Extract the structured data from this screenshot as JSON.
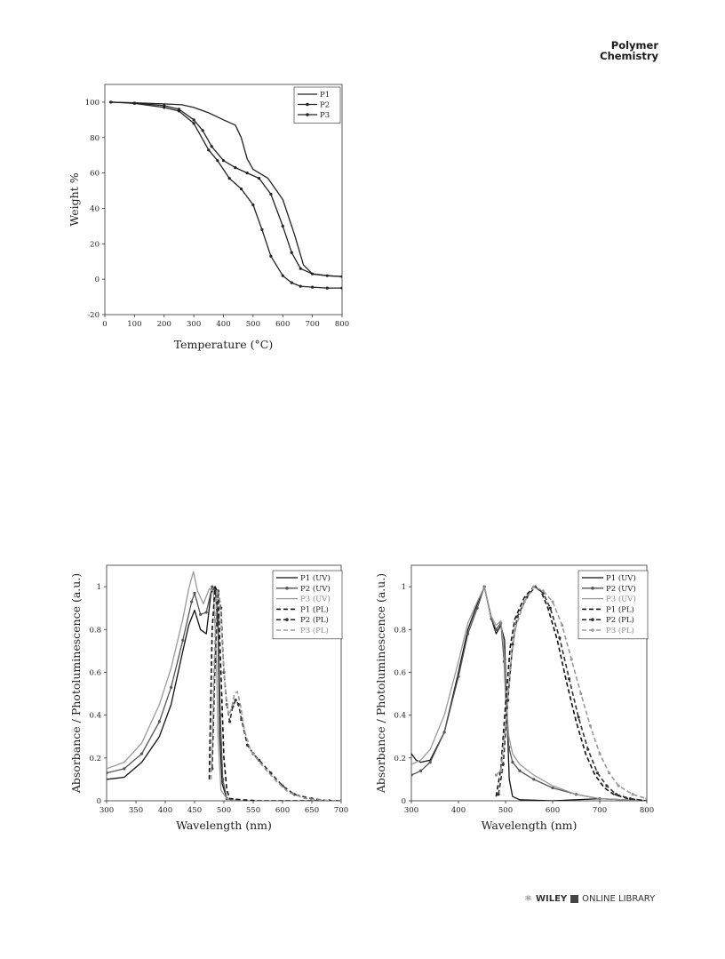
{
  "header": {
    "journal_line1": "Polymer",
    "journal_line2": "Chemistry"
  },
  "footer": {
    "publisher": "WILEY",
    "library": "ONLINE LIBRARY"
  },
  "chart_data": [
    {
      "type": "line",
      "xlabel": "Temperature (°C)",
      "ylabel": "Weight %",
      "xlim": [
        0,
        800
      ],
      "ylim": [
        -20,
        110
      ],
      "xticks": [
        0,
        100,
        200,
        300,
        400,
        500,
        600,
        700,
        800
      ],
      "yticks": [
        -20,
        0,
        20,
        40,
        60,
        80,
        100
      ],
      "legend_position": "top-right",
      "series": [
        {
          "name": "P1",
          "style": "solid",
          "marker": "none",
          "color": "#222222",
          "x": [
            20,
            100,
            200,
            260,
            300,
            350,
            400,
            440,
            460,
            480,
            500,
            550,
            600,
            640,
            670,
            700,
            750,
            800
          ],
          "y": [
            100,
            99.6,
            99,
            98.5,
            97,
            94,
            90,
            87,
            80,
            68,
            62,
            57,
            45,
            25,
            8,
            3,
            2,
            1.5
          ]
        },
        {
          "name": "P2",
          "style": "solid",
          "marker": "dot",
          "color": "#222222",
          "x": [
            20,
            100,
            200,
            250,
            300,
            330,
            360,
            400,
            440,
            480,
            520,
            560,
            600,
            630,
            660,
            700,
            750,
            800
          ],
          "y": [
            100,
            99.5,
            98,
            96,
            90,
            84,
            75,
            67,
            63,
            60,
            57,
            48,
            30,
            15,
            6,
            3,
            2,
            1.5
          ]
        },
        {
          "name": "P3",
          "style": "solid",
          "marker": "dot",
          "color": "#222222",
          "x": [
            20,
            100,
            200,
            250,
            300,
            350,
            380,
            420,
            460,
            500,
            530,
            560,
            600,
            630,
            660,
            700,
            750,
            800
          ],
          "y": [
            100,
            99.3,
            97,
            95,
            88,
            73,
            67,
            57,
            51,
            42,
            28,
            13,
            2,
            -2,
            -4,
            -4.5,
            -5,
            -5
          ]
        }
      ]
    },
    {
      "type": "line",
      "xlabel": "Wavelength (nm)",
      "ylabel": "Absorbance / Photoluminescence (a.u.)",
      "xlim": [
        300,
        700
      ],
      "ylim": [
        0,
        1.1
      ],
      "xticks": [
        300,
        350,
        400,
        450,
        500,
        550,
        600,
        650,
        700
      ],
      "yticks": [
        0,
        0.2,
        0.4,
        0.6,
        0.8,
        1
      ],
      "legend_position": "top-right",
      "series": [
        {
          "name": "P1 (UV)",
          "style": "solid",
          "marker": "none",
          "color": "#111111",
          "x": [
            300,
            330,
            360,
            390,
            410,
            430,
            440,
            450,
            460,
            470,
            478,
            485,
            490,
            493,
            497,
            505,
            520
          ],
          "y": [
            0.1,
            0.11,
            0.18,
            0.3,
            0.45,
            0.7,
            0.82,
            0.89,
            0.8,
            0.78,
            0.97,
            1.0,
            0.8,
            0.3,
            0.08,
            0.01,
            0
          ]
        },
        {
          "name": "P2 (UV)",
          "style": "solid",
          "marker": "dot",
          "color": "#555555",
          "x": [
            300,
            330,
            360,
            390,
            410,
            430,
            445,
            450,
            460,
            470,
            480,
            486,
            490,
            494,
            498,
            505,
            520
          ],
          "y": [
            0.13,
            0.15,
            0.22,
            0.37,
            0.53,
            0.75,
            0.93,
            0.97,
            0.87,
            0.88,
            1.0,
            0.98,
            0.85,
            0.4,
            0.1,
            0.01,
            0
          ]
        },
        {
          "name": "P3 (UV)",
          "style": "solid",
          "marker": "none",
          "color": "#999999",
          "x": [
            300,
            330,
            360,
            390,
            410,
            430,
            440,
            448,
            455,
            465,
            475,
            482,
            487,
            490,
            495,
            505,
            520
          ],
          "y": [
            0.15,
            0.18,
            0.27,
            0.45,
            0.62,
            0.85,
            0.99,
            1.07,
            0.98,
            0.92,
            0.99,
            0.98,
            0.7,
            0.3,
            0.05,
            0.01,
            0
          ]
        },
        {
          "name": "P1 (PL)",
          "style": "dashed",
          "marker": "none",
          "color": "#111111",
          "x": [
            475,
            480,
            485,
            490,
            495,
            500,
            505,
            510,
            530,
            560,
            600,
            650,
            700
          ],
          "y": [
            0.1,
            0.8,
            1.0,
            0.97,
            0.6,
            0.2,
            0.05,
            0.01,
            0.005,
            0,
            0,
            0,
            0
          ]
        },
        {
          "name": "P2 (PL)",
          "style": "dashed",
          "marker": "dot",
          "color": "#333333",
          "x": [
            480,
            485,
            490,
            495,
            500,
            505,
            510,
            515,
            520,
            525,
            530,
            540,
            550,
            560,
            580,
            600,
            620,
            650,
            680,
            700
          ],
          "y": [
            0.15,
            0.65,
            0.98,
            0.9,
            0.6,
            0.45,
            0.37,
            0.44,
            0.47,
            0.45,
            0.38,
            0.26,
            0.22,
            0.19,
            0.13,
            0.07,
            0.03,
            0.01,
            0,
            0
          ]
        },
        {
          "name": "P3 (PL)",
          "style": "dashed",
          "marker": "none",
          "color": "#999999",
          "x": [
            478,
            483,
            488,
            493,
            498,
            503,
            508,
            513,
            518,
            523,
            528,
            535,
            545,
            555,
            570,
            590,
            610,
            640,
            680,
            700
          ],
          "y": [
            0.1,
            0.6,
            0.99,
            0.93,
            0.7,
            0.5,
            0.4,
            0.43,
            0.5,
            0.51,
            0.45,
            0.33,
            0.24,
            0.2,
            0.15,
            0.09,
            0.04,
            0.01,
            0,
            0
          ]
        }
      ]
    },
    {
      "type": "line",
      "xlabel": "Wavelength (nm)",
      "ylabel": "Absorbance / Photoluminescence (a.u.)",
      "xlim": [
        300,
        800
      ],
      "ylim": [
        0,
        1.1
      ],
      "xticks": [
        300,
        400,
        500,
        600,
        700,
        800
      ],
      "yticks": [
        0,
        0.2,
        0.4,
        0.6,
        0.8,
        1
      ],
      "legend_position": "top-right",
      "series": [
        {
          "name": "P1 (UV)",
          "style": "solid",
          "marker": "none",
          "color": "#111111",
          "x": [
            300,
            310,
            320,
            340,
            370,
            400,
            420,
            440,
            455,
            470,
            480,
            490,
            498,
            503,
            508,
            515,
            530,
            600,
            700,
            800
          ],
          "y": [
            0.22,
            0.19,
            0.18,
            0.19,
            0.32,
            0.6,
            0.8,
            0.92,
            1.0,
            0.85,
            0.78,
            0.82,
            0.75,
            0.4,
            0.1,
            0.02,
            0.005,
            0,
            0.01,
            0
          ]
        },
        {
          "name": "P2 (UV)",
          "style": "solid",
          "marker": "dot",
          "color": "#555555",
          "x": [
            300,
            320,
            340,
            370,
            400,
            420,
            440,
            455,
            470,
            480,
            490,
            497,
            502,
            507,
            515,
            530,
            560,
            600,
            650,
            700,
            800
          ],
          "y": [
            0.12,
            0.14,
            0.18,
            0.32,
            0.58,
            0.78,
            0.9,
            1.0,
            0.85,
            0.8,
            0.83,
            0.65,
            0.4,
            0.25,
            0.18,
            0.14,
            0.1,
            0.06,
            0.03,
            0.01,
            0
          ]
        },
        {
          "name": "P3 (UV)",
          "style": "solid",
          "marker": "none",
          "color": "#999999",
          "x": [
            300,
            320,
            340,
            370,
            400,
            420,
            440,
            455,
            470,
            480,
            490,
            497,
            502,
            507,
            515,
            530,
            560,
            600,
            650,
            700,
            800
          ],
          "y": [
            0.17,
            0.19,
            0.24,
            0.4,
            0.65,
            0.83,
            0.93,
            1.0,
            0.86,
            0.82,
            0.84,
            0.7,
            0.45,
            0.3,
            0.22,
            0.17,
            0.12,
            0.07,
            0.03,
            0.01,
            0
          ]
        },
        {
          "name": "P1 (PL)",
          "style": "dashed",
          "marker": "none",
          "color": "#111111",
          "x": [
            480,
            490,
            500,
            510,
            520,
            540,
            560,
            575,
            590,
            610,
            630,
            650,
            670,
            690,
            710,
            730,
            760,
            800
          ],
          "y": [
            0.02,
            0.15,
            0.45,
            0.72,
            0.85,
            0.95,
            1.0,
            0.98,
            0.9,
            0.75,
            0.55,
            0.37,
            0.22,
            0.12,
            0.06,
            0.03,
            0.01,
            0
          ]
        },
        {
          "name": "P2 (PL)",
          "style": "dashed",
          "marker": "dot",
          "color": "#333333",
          "x": [
            485,
            495,
            505,
            515,
            525,
            545,
            563,
            580,
            595,
            615,
            635,
            655,
            675,
            695,
            715,
            735,
            765,
            800
          ],
          "y": [
            0.03,
            0.17,
            0.47,
            0.73,
            0.86,
            0.95,
            1.0,
            0.97,
            0.9,
            0.76,
            0.57,
            0.39,
            0.24,
            0.13,
            0.07,
            0.03,
            0.01,
            0
          ]
        },
        {
          "name": "P3 (PL)",
          "style": "dashed",
          "marker": "dot",
          "color": "#999999",
          "x": [
            480,
            490,
            500,
            510,
            520,
            540,
            560,
            580,
            600,
            620,
            640,
            660,
            680,
            700,
            720,
            740,
            770,
            800
          ],
          "y": [
            0.12,
            0.14,
            0.35,
            0.62,
            0.8,
            0.93,
            1.0,
            0.98,
            0.93,
            0.82,
            0.66,
            0.5,
            0.35,
            0.22,
            0.13,
            0.07,
            0.03,
            0.01
          ]
        }
      ]
    }
  ]
}
